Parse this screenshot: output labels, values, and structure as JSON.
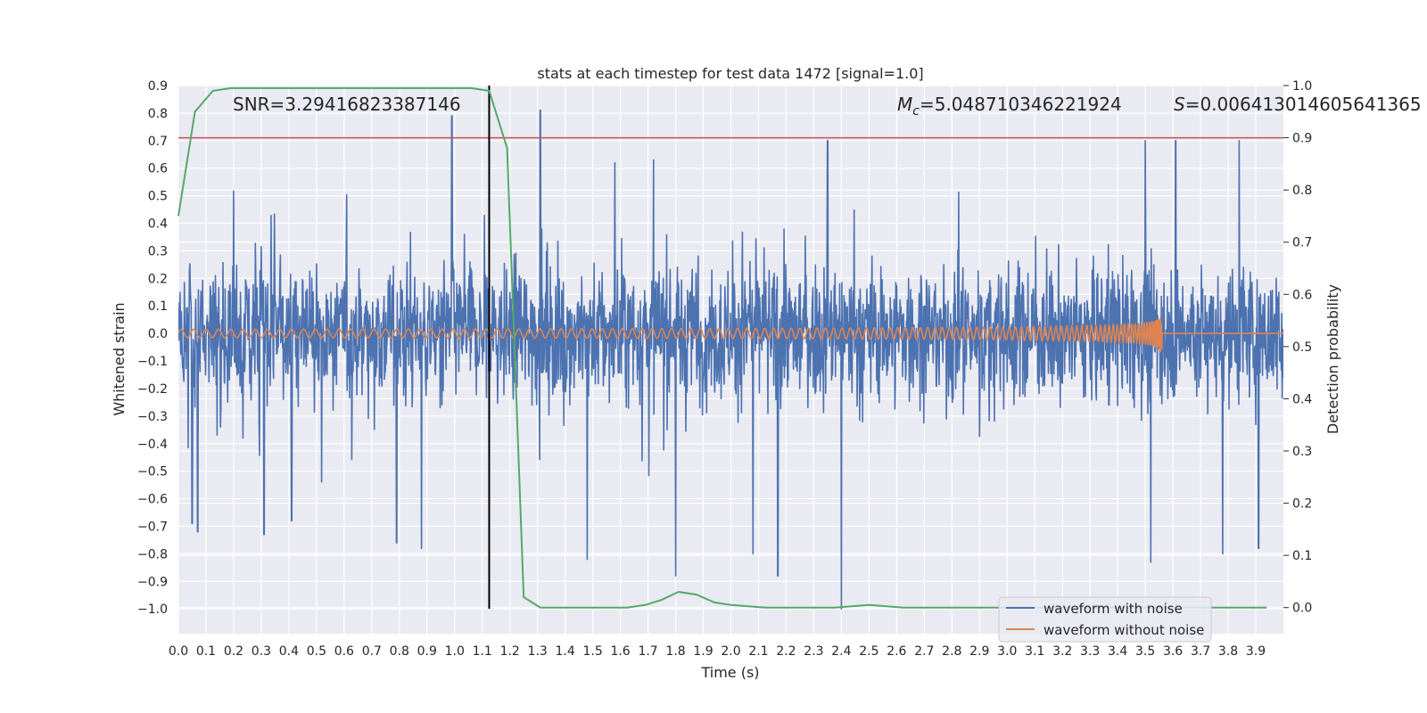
{
  "chart_data": {
    "type": "line",
    "title": "stats at each timestep for test data 1472 [signal=1.0]",
    "xlabel": "Time (s)",
    "ylabel": "Whitened strain",
    "y2label": "Detection probability",
    "xlim": [
      0.0,
      4.0
    ],
    "ylim": [
      -1.09,
      0.9
    ],
    "y2lim": [
      -0.05,
      1.0
    ],
    "x_ticks": [
      "0.0",
      "0.1",
      "0.2",
      "0.3",
      "0.4",
      "0.5",
      "0.6",
      "0.7",
      "0.8",
      "0.9",
      "1.0",
      "1.1",
      "1.2",
      "1.3",
      "1.4",
      "1.5",
      "1.6",
      "1.7",
      "1.8",
      "1.9",
      "2.0",
      "2.1",
      "2.2",
      "2.3",
      "2.4",
      "2.5",
      "2.6",
      "2.7",
      "2.8",
      "2.9",
      "3.0",
      "3.1",
      "3.2",
      "3.3",
      "3.4",
      "3.5",
      "3.6",
      "3.7",
      "3.8",
      "3.9"
    ],
    "y_ticks": [
      "0.9",
      "0.8",
      "0.7",
      "0.6",
      "0.5",
      "0.4",
      "0.3",
      "0.2",
      "0.1",
      "0.0",
      "−0.1",
      "−0.2",
      "−0.3",
      "−0.4",
      "−0.5",
      "−0.6",
      "−0.7",
      "−0.8",
      "−0.9",
      "−1.0"
    ],
    "y2_ticks": [
      "1.0",
      "0.9",
      "0.8",
      "0.7",
      "0.6",
      "0.5",
      "0.4",
      "0.3",
      "0.2",
      "0.1",
      "0.0"
    ],
    "annotations": {
      "snr": "SNR=3.29416823387146",
      "mc_sym": "M",
      "mc_sub": "c",
      "mc_val": "=5.048710346221924",
      "s_sym": "S",
      "s_val": "=0.006413014605641365"
    },
    "threshold_y2": 0.9,
    "marker_x": 1.125,
    "series": [
      {
        "name": "waveform with noise",
        "color": "#4c72b0",
        "description": "noisy whitened strain, approx. amplitude 0.35",
        "extrema": [
          [
            0.05,
            -0.69
          ],
          [
            0.07,
            -0.72
          ],
          [
            0.31,
            -0.73
          ],
          [
            0.41,
            -0.68
          ],
          [
            0.79,
            -0.76
          ],
          [
            0.88,
            -0.78
          ],
          [
            0.99,
            0.79
          ],
          [
            1.31,
            0.81
          ],
          [
            1.48,
            -0.82
          ],
          [
            1.58,
            0.62
          ],
          [
            1.8,
            -0.88
          ],
          [
            1.72,
            0.63
          ],
          [
            2.08,
            -0.8
          ],
          [
            2.17,
            -0.88
          ],
          [
            2.4,
            -1.0
          ],
          [
            2.35,
            0.7
          ],
          [
            3.52,
            -0.83
          ],
          [
            3.5,
            0.7
          ],
          [
            3.61,
            0.7
          ],
          [
            3.78,
            -0.8
          ],
          [
            3.84,
            0.7
          ],
          [
            3.91,
            -0.78
          ]
        ]
      },
      {
        "name": "waveform without noise",
        "color": "#dd8452",
        "description": "chirp signal, amplitude grows until merger at t=3.56 s, then flat at 0",
        "merger_time": 3.56,
        "amplitude_start": 0.015,
        "amplitude_peak": 0.07
      },
      {
        "name": "detection probability",
        "axis": "right",
        "color": "#55a868",
        "x": [
          0.0,
          0.06,
          0.125,
          0.19,
          0.25,
          0.5,
          0.75,
          1.0,
          1.06,
          1.125,
          1.19,
          1.25,
          1.31,
          1.375,
          1.44,
          1.5,
          1.625,
          1.69,
          1.75,
          1.81,
          1.875,
          1.94,
          2.0,
          2.125,
          2.25,
          2.375,
          2.5,
          2.625,
          2.75,
          2.875,
          3.0,
          3.25,
          3.5,
          3.75,
          3.94
        ],
        "values": [
          0.75,
          0.95,
          0.99,
          0.995,
          0.995,
          0.995,
          0.995,
          0.995,
          0.995,
          0.99,
          0.88,
          0.02,
          0.0,
          0.0,
          0.0,
          0.0,
          0.0,
          0.005,
          0.015,
          0.03,
          0.025,
          0.01,
          0.005,
          0.0,
          0.0,
          0.0,
          0.005,
          0.0,
          0.0,
          0.0,
          0.0,
          0.0,
          0.0,
          0.0,
          0.0
        ]
      }
    ],
    "threshold_color": "#c44e52",
    "legend": {
      "placement": "bottom-right",
      "entries": [
        "waveform with noise",
        "waveform without noise"
      ]
    },
    "colors": {
      "axes_bg": "#eaeaf2",
      "grid": "#ffffff",
      "marker_line": "#000000"
    }
  }
}
